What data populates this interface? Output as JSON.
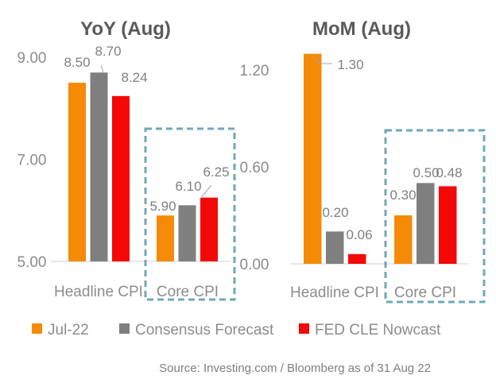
{
  "colors": {
    "jul": "#f58a07",
    "consensus": "#7f7f7f",
    "fed": "#f50808",
    "highlight": "#6fa8b8"
  },
  "legend": [
    {
      "label": "Jul-22",
      "color": "#f58a07"
    },
    {
      "label": "Consensus Forecast",
      "color": "#7f7f7f"
    },
    {
      "label": "FED CLE Nowcast",
      "color": "#f50808"
    }
  ],
  "source": "Source: Investing.com / Bloomberg as of 31 Aug 22",
  "chart_data": [
    {
      "type": "bar",
      "title": "YoY (Aug)",
      "categories": [
        "Headline CPI",
        "Core CPI"
      ],
      "series": [
        {
          "name": "Jul-22",
          "values": [
            8.5,
            5.9
          ]
        },
        {
          "name": "Consensus Forecast",
          "values": [
            8.7,
            6.1
          ]
        },
        {
          "name": "FED CLE Nowcast",
          "values": [
            8.24,
            6.25
          ]
        }
      ],
      "labels": [
        [
          "8.50",
          "8.70",
          "8.24"
        ],
        [
          "5.90",
          "6.10",
          "6.25"
        ]
      ],
      "ylim": [
        5.0,
        9.0
      ],
      "yticks": [
        "5.00",
        "7.00",
        "9.00"
      ],
      "highlight": "Core CPI",
      "grid": false,
      "legend_position": "bottom"
    },
    {
      "type": "bar",
      "title": "MoM (Aug)",
      "categories": [
        "Headline CPI",
        "Core CPI"
      ],
      "series": [
        {
          "name": "Jul-22",
          "values": [
            1.3,
            0.3
          ]
        },
        {
          "name": "Consensus Forecast",
          "values": [
            0.2,
            0.5
          ]
        },
        {
          "name": "FED CLE Nowcast",
          "values": [
            0.06,
            0.48
          ]
        }
      ],
      "labels": [
        [
          "1.30",
          "0.20",
          "0.06"
        ],
        [
          "0.30",
          "0.50",
          "0.48"
        ]
      ],
      "ylim": [
        0.0,
        1.2
      ],
      "yticks": [
        "0.00",
        "0.60",
        "1.20"
      ],
      "highlight": "Core CPI",
      "grid": false,
      "legend_position": "bottom"
    }
  ]
}
